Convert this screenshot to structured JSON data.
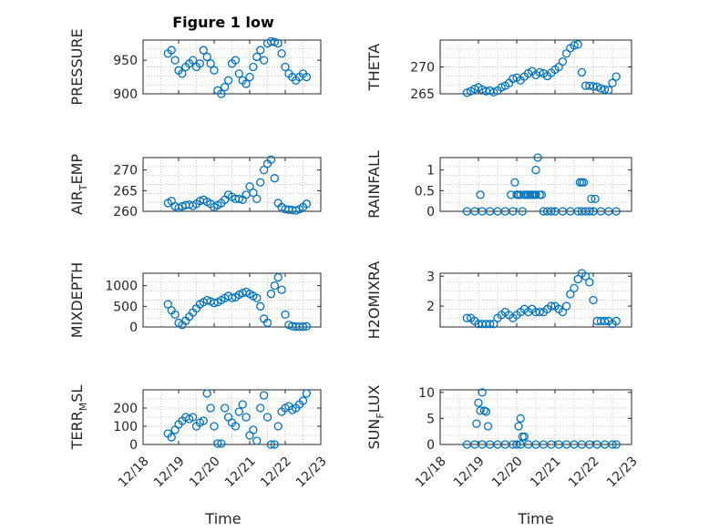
{
  "figure": {
    "title": "Figure 1 low",
    "xlabel": "Time"
  },
  "colors": {
    "series": "#0072bd",
    "axis": "#262626",
    "grid": "#c8c8c8"
  },
  "chart_data": [
    {
      "type": "scatter",
      "ylabel": "PRESSURE",
      "x_ticks": [],
      "y_ticks": [
        "900",
        "950"
      ],
      "xlim": [
        12.18,
        12.23
      ],
      "ylim": [
        900,
        980
      ],
      "grid": true,
      "x": [
        12.187,
        12.188,
        12.189,
        12.19,
        12.191,
        12.192,
        12.193,
        12.194,
        12.195,
        12.196,
        12.197,
        12.198,
        12.199,
        12.2,
        12.201,
        12.202,
        12.203,
        12.204,
        12.205,
        12.206,
        12.207,
        12.208,
        12.209,
        12.21,
        12.211,
        12.212,
        12.213,
        12.214,
        12.215,
        12.216,
        12.217,
        12.218,
        12.219,
        12.22,
        12.221,
        12.222,
        12.223,
        12.224,
        12.225,
        12.226
      ],
      "y": [
        960,
        965,
        950,
        935,
        930,
        940,
        945,
        950,
        940,
        945,
        965,
        955,
        945,
        935,
        905,
        900,
        910,
        920,
        945,
        950,
        930,
        920,
        915,
        925,
        940,
        955,
        965,
        950,
        975,
        978,
        977,
        975,
        960,
        940,
        930,
        925,
        920,
        925,
        930,
        925
      ]
    },
    {
      "type": "scatter",
      "ylabel": "THETA",
      "x_ticks": [],
      "y_ticks": [
        "265",
        "270"
      ],
      "xlim": [
        12.18,
        12.23
      ],
      "ylim": [
        265,
        275
      ],
      "grid": true,
      "x": [
        12.187,
        12.188,
        12.189,
        12.19,
        12.191,
        12.192,
        12.193,
        12.194,
        12.195,
        12.196,
        12.197,
        12.198,
        12.199,
        12.2,
        12.201,
        12.202,
        12.203,
        12.204,
        12.205,
        12.206,
        12.207,
        12.208,
        12.209,
        12.21,
        12.211,
        12.212,
        12.213,
        12.214,
        12.215,
        12.216,
        12.217,
        12.218,
        12.219,
        12.22,
        12.221,
        12.222,
        12.223,
        12.224,
        12.225,
        12.226
      ],
      "y": [
        265.2,
        265.5,
        265.9,
        266.2,
        265.8,
        265.5,
        265.6,
        265.3,
        265.6,
        266.2,
        266.5,
        267,
        267.8,
        268,
        267.5,
        268.2,
        268.8,
        269.2,
        268.5,
        269,
        268.8,
        268.3,
        268.9,
        269.5,
        270,
        271,
        272.5,
        273.5,
        274,
        274.2,
        269,
        266.5,
        266.5,
        266.4,
        266.3,
        266,
        265.8,
        265.7,
        267,
        268.2
      ]
    },
    {
      "type": "scatter",
      "ylabel": "AIR_TEMP",
      "x_ticks": [],
      "y_ticks": [
        "260",
        "265",
        "270"
      ],
      "xlim": [
        12.18,
        12.23
      ],
      "ylim": [
        260,
        273
      ],
      "grid": true,
      "x": [
        12.187,
        12.188,
        12.189,
        12.19,
        12.191,
        12.192,
        12.193,
        12.194,
        12.195,
        12.196,
        12.197,
        12.198,
        12.199,
        12.2,
        12.201,
        12.202,
        12.203,
        12.204,
        12.205,
        12.206,
        12.207,
        12.208,
        12.209,
        12.21,
        12.211,
        12.212,
        12.213,
        12.214,
        12.215,
        12.216,
        12.217,
        12.218,
        12.219,
        12.22,
        12.221,
        12.222,
        12.223,
        12.224,
        12.225,
        12.226
      ],
      "y": [
        262,
        262.5,
        261.2,
        260.8,
        261.2,
        261.5,
        261.6,
        261.3,
        261.8,
        262.5,
        262.8,
        262.3,
        261.8,
        261,
        261.5,
        262,
        262.8,
        264,
        263.5,
        263,
        263,
        262.8,
        264,
        266,
        264.5,
        263,
        267,
        270,
        271.5,
        272.5,
        268,
        262,
        261,
        260.5,
        260.4,
        260.3,
        260.2,
        260.5,
        261,
        261.8
      ]
    },
    {
      "type": "scatter",
      "ylabel": "RAINFALL",
      "x_ticks": [],
      "y_ticks": [
        "0",
        "0.5",
        "1"
      ],
      "xlim": [
        12.18,
        12.23
      ],
      "ylim": [
        0,
        1.3
      ],
      "grid": true,
      "x": [
        12.187,
        12.189,
        12.191,
        12.193,
        12.195,
        12.197,
        12.199,
        12.2,
        12.201,
        12.202,
        12.203,
        12.204,
        12.205,
        12.206,
        12.207,
        12.208,
        12.209,
        12.21,
        12.212,
        12.214,
        12.216,
        12.217,
        12.218,
        12.219,
        12.22,
        12.222,
        12.224,
        12.226,
        12.1905,
        12.1985,
        12.1995,
        12.2005,
        12.2015,
        12.2025,
        12.2035,
        12.2045,
        12.205,
        12.2055,
        12.2065,
        12.2165,
        12.217,
        12.2175,
        12.2195,
        12.2205
      ],
      "y": [
        0,
        0,
        0,
        0,
        0,
        0,
        0,
        0.4,
        0.4,
        0.4,
        0.4,
        0.4,
        0.4,
        0.4,
        0,
        0,
        0,
        0,
        0,
        0,
        0,
        0,
        0,
        0,
        0,
        0,
        0,
        0,
        0.4,
        0.4,
        0.7,
        0.4,
        0,
        0.4,
        0.4,
        0.4,
        1.0,
        1.3,
        0.4,
        0.7,
        0.7,
        0.7,
        0.3,
        0.3
      ]
    },
    {
      "type": "scatter",
      "ylabel": "MIXDEPTH",
      "x_ticks": [],
      "y_ticks": [
        "0",
        "500",
        "1000"
      ],
      "xlim": [
        12.18,
        12.23
      ],
      "ylim": [
        0,
        1300
      ],
      "grid": true,
      "x": [
        12.187,
        12.188,
        12.189,
        12.19,
        12.191,
        12.192,
        12.193,
        12.194,
        12.195,
        12.196,
        12.197,
        12.198,
        12.199,
        12.2,
        12.201,
        12.202,
        12.203,
        12.204,
        12.205,
        12.206,
        12.207,
        12.208,
        12.209,
        12.21,
        12.211,
        12.212,
        12.213,
        12.214,
        12.215,
        12.216,
        12.217,
        12.218,
        12.219,
        12.22,
        12.221,
        12.222,
        12.223,
        12.224,
        12.225,
        12.226
      ],
      "y": [
        550,
        400,
        300,
        100,
        50,
        150,
        250,
        350,
        450,
        550,
        600,
        650,
        620,
        580,
        600,
        650,
        700,
        750,
        700,
        720,
        780,
        820,
        850,
        800,
        750,
        700,
        500,
        200,
        100,
        800,
        1000,
        1200,
        900,
        300,
        50,
        20,
        10,
        5,
        10,
        15
      ]
    },
    {
      "type": "scatter",
      "ylabel": "H2OMIXRA",
      "x_ticks": [],
      "y_ticks": [
        "2",
        "3"
      ],
      "xlim": [
        12.18,
        12.23
      ],
      "ylim": [
        1.3,
        3.1
      ],
      "grid": true,
      "x": [
        12.187,
        12.188,
        12.189,
        12.19,
        12.191,
        12.192,
        12.193,
        12.194,
        12.195,
        12.196,
        12.197,
        12.198,
        12.199,
        12.2,
        12.201,
        12.202,
        12.203,
        12.204,
        12.205,
        12.206,
        12.207,
        12.208,
        12.209,
        12.21,
        12.211,
        12.212,
        12.213,
        12.214,
        12.215,
        12.216,
        12.217,
        12.218,
        12.219,
        12.22,
        12.221,
        12.222,
        12.223,
        12.224,
        12.225,
        12.226
      ],
      "y": [
        1.6,
        1.6,
        1.5,
        1.4,
        1.4,
        1.4,
        1.4,
        1.4,
        1.6,
        1.7,
        1.8,
        1.7,
        1.6,
        1.7,
        1.8,
        1.9,
        1.8,
        1.9,
        1.8,
        1.8,
        1.8,
        1.9,
        2.0,
        2.0,
        1.9,
        1.8,
        2.0,
        2.4,
        2.6,
        2.9,
        3.1,
        3.0,
        2.8,
        2.2,
        1.5,
        1.5,
        1.5,
        1.5,
        1.4,
        1.5
      ]
    },
    {
      "type": "scatter",
      "ylabel": "TERR_MSL",
      "x_ticks": [
        "12/18",
        "12/19",
        "12/20",
        "12/21",
        "12/22",
        "12/23"
      ],
      "y_ticks": [
        "0",
        "100",
        "200"
      ],
      "xlim": [
        12.18,
        12.23
      ],
      "ylim": [
        0,
        300
      ],
      "grid": true,
      "x": [
        12.187,
        12.188,
        12.189,
        12.19,
        12.191,
        12.192,
        12.193,
        12.194,
        12.195,
        12.196,
        12.197,
        12.198,
        12.199,
        12.2,
        12.201,
        12.202,
        12.203,
        12.204,
        12.205,
        12.206,
        12.207,
        12.208,
        12.209,
        12.21,
        12.211,
        12.212,
        12.213,
        12.214,
        12.215,
        12.216,
        12.217,
        12.218,
        12.219,
        12.22,
        12.221,
        12.222,
        12.223,
        12.224,
        12.225,
        12.226
      ],
      "y": [
        60,
        40,
        80,
        110,
        130,
        150,
        140,
        150,
        100,
        120,
        130,
        280,
        200,
        100,
        5,
        5,
        200,
        150,
        120,
        100,
        180,
        220,
        150,
        50,
        80,
        20,
        200,
        270,
        150,
        0,
        0,
        100,
        180,
        200,
        210,
        190,
        200,
        220,
        240,
        280
      ]
    },
    {
      "type": "scatter",
      "ylabel": "SUN_FLUX",
      "x_ticks": [
        "12/18",
        "12/19",
        "12/20",
        "12/21",
        "12/22",
        "12/23"
      ],
      "y_ticks": [
        "0",
        "5",
        "10"
      ],
      "xlim": [
        12.18,
        12.23
      ],
      "ylim": [
        0,
        10.5
      ],
      "grid": true,
      "x": [
        12.187,
        12.189,
        12.191,
        12.193,
        12.195,
        12.197,
        12.199,
        12.2,
        12.201,
        12.203,
        12.205,
        12.207,
        12.209,
        12.211,
        12.213,
        12.215,
        12.217,
        12.219,
        12.221,
        12.223,
        12.225,
        12.226,
        12.1895,
        12.19,
        12.1905,
        12.191,
        12.1915,
        12.192,
        12.1925,
        12.2005,
        12.201,
        12.2015,
        12.202
      ],
      "y": [
        0,
        0,
        0,
        0,
        0,
        0,
        0,
        0,
        0,
        0,
        0,
        0,
        0,
        0,
        0,
        0,
        0,
        0,
        0,
        0,
        0,
        0,
        4,
        8,
        6.5,
        10,
        6.5,
        6.3,
        3.5,
        3.5,
        5,
        1.5,
        1.5
      ]
    }
  ]
}
